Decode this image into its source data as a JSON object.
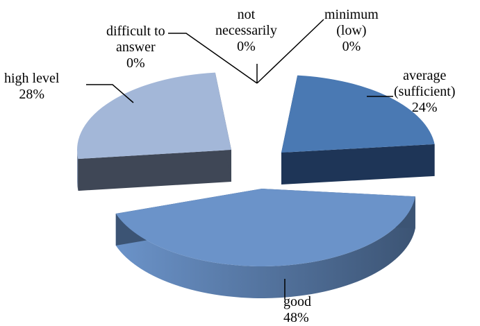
{
  "chart_data": {
    "type": "pie",
    "title": "",
    "three_d": true,
    "exploded": true,
    "legend": "none",
    "slices": [
      {
        "label": "average\n(sufficient)",
        "value": 24,
        "display": "24%",
        "color": "#4a79b3",
        "side_color": "#1e3557"
      },
      {
        "label": "good",
        "value": 48,
        "display": "48%",
        "color": "#6b93c9",
        "side_color": "#3c5474"
      },
      {
        "label": "high level",
        "value": 28,
        "display": "28%",
        "color": "#a3b7d8",
        "side_color": "#3f4756"
      },
      {
        "label": "difficult to\nanswer",
        "value": 0,
        "display": "0%",
        "color": "#4f81bd",
        "side_color": "#2a4466"
      },
      {
        "label": "not\nnecessarily",
        "value": 0,
        "display": "0%",
        "color": "#4f81bd",
        "side_color": "#2a4466"
      },
      {
        "label": "minimum\n(low)",
        "value": 0,
        "display": "0%",
        "color": "#4f81bd",
        "side_color": "#2a4466"
      }
    ]
  }
}
